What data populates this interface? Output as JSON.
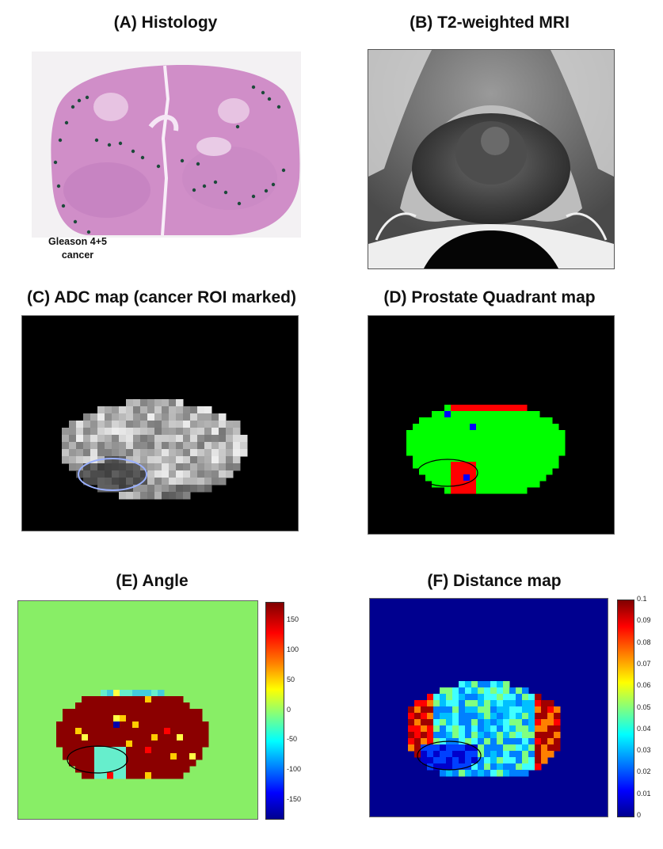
{
  "panels": {
    "a": {
      "title": "(A) Histology",
      "caption_line1": "Gleason 4+5",
      "caption_line2": "cancer"
    },
    "b": {
      "title": "(B) T2-weighted MRI"
    },
    "c": {
      "title": "(C) ADC map (cancer ROI marked)"
    },
    "d": {
      "title": "(D) Prostate Quadrant map"
    },
    "e": {
      "title": "(E) Angle",
      "colorbar": {
        "ticks": [
          "150",
          "100",
          "50",
          "0",
          "-50",
          "-100",
          "-150"
        ],
        "min": -180,
        "max": 180
      }
    },
    "f": {
      "title": "(F) Distance map",
      "colorbar": {
        "ticks": [
          "0.1",
          "0.09",
          "0.08",
          "0.07",
          "0.06",
          "0.05",
          "0.04",
          "0.03",
          "0.02",
          "0.01",
          "0"
        ],
        "min": 0,
        "max": 0.1
      }
    }
  },
  "colors": {
    "histology_pink": "#d08ec8",
    "quadrant_red": "#ff0000",
    "quadrant_green": "#00ff00",
    "quadrant_blue": "#0000ff",
    "angle_background": "#88ee66",
    "angle_dark_red": "#8b0000",
    "distance_background": "#00008f",
    "roi_outline": "#9ab0ff"
  }
}
